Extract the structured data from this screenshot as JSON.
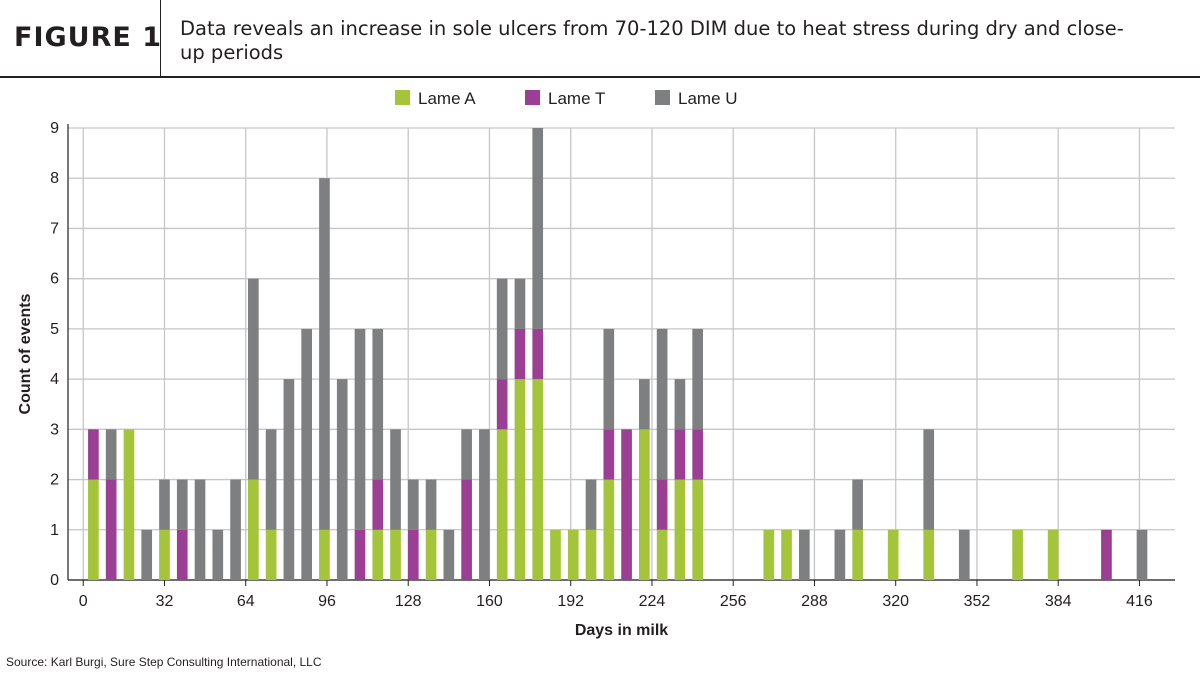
{
  "figure": {
    "label": "FIGURE 1",
    "title": "Data reveals an increase in sole ulcers from 70-120 DIM due to heat stress during dry and close-up periods"
  },
  "source": "Source: Karl Burgi, Sure Step Consulting International, LLC",
  "chart_data": {
    "type": "bar",
    "stacked": true,
    "xlabel": "Days in milk",
    "ylabel": "Count of events",
    "xlim": [
      -6,
      430
    ],
    "ylim": [
      0,
      9
    ],
    "xticks": [
      0,
      32,
      64,
      96,
      128,
      160,
      192,
      224,
      256,
      288,
      320,
      352,
      384,
      416
    ],
    "yticks": [
      0,
      1,
      2,
      3,
      4,
      5,
      6,
      7,
      8,
      9
    ],
    "grid": true,
    "legend_position": "top-center",
    "x": [
      4,
      11,
      18,
      25,
      32,
      39,
      46,
      53,
      60,
      67,
      74,
      81,
      88,
      95,
      102,
      109,
      116,
      123,
      130,
      137,
      144,
      151,
      158,
      165,
      172,
      179,
      186,
      193,
      200,
      207,
      214,
      221,
      228,
      235,
      242,
      249,
      270,
      277,
      284,
      298,
      305,
      319,
      333,
      347,
      368,
      382,
      403,
      417
    ],
    "series": [
      {
        "name": "Lame A",
        "color": "#a4c43c",
        "values": [
          2,
          0,
          3,
          0,
          1,
          0,
          0,
          0,
          0,
          2,
          1,
          0,
          0,
          1,
          0,
          0,
          1,
          1,
          0,
          1,
          0,
          0,
          0,
          3,
          4,
          4,
          1,
          1,
          1,
          2,
          0,
          3,
          1,
          2,
          2,
          0,
          1,
          1,
          0,
          0,
          1,
          1,
          1,
          0,
          1,
          1,
          0,
          0
        ]
      },
      {
        "name": "Lame T",
        "color": "#9b3f94",
        "values": [
          1,
          2,
          0,
          0,
          0,
          1,
          0,
          0,
          0,
          0,
          0,
          0,
          0,
          0,
          0,
          1,
          1,
          0,
          1,
          0,
          0,
          2,
          0,
          1,
          1,
          1,
          0,
          0,
          0,
          1,
          3,
          0,
          1,
          1,
          1,
          0,
          0,
          0,
          0,
          0,
          0,
          0,
          0,
          0,
          0,
          0,
          1,
          0
        ]
      },
      {
        "name": "Lame U",
        "color": "#7e7f81",
        "values": [
          0,
          1,
          0,
          1,
          1,
          1,
          2,
          1,
          2,
          4,
          2,
          4,
          5,
          7,
          4,
          4,
          3,
          2,
          1,
          1,
          1,
          1,
          3,
          2,
          1,
          4,
          0,
          0,
          1,
          2,
          0,
          1,
          3,
          1,
          2,
          0,
          0,
          0,
          1,
          1,
          1,
          0,
          2,
          1,
          0,
          0,
          0,
          1
        ]
      }
    ]
  }
}
